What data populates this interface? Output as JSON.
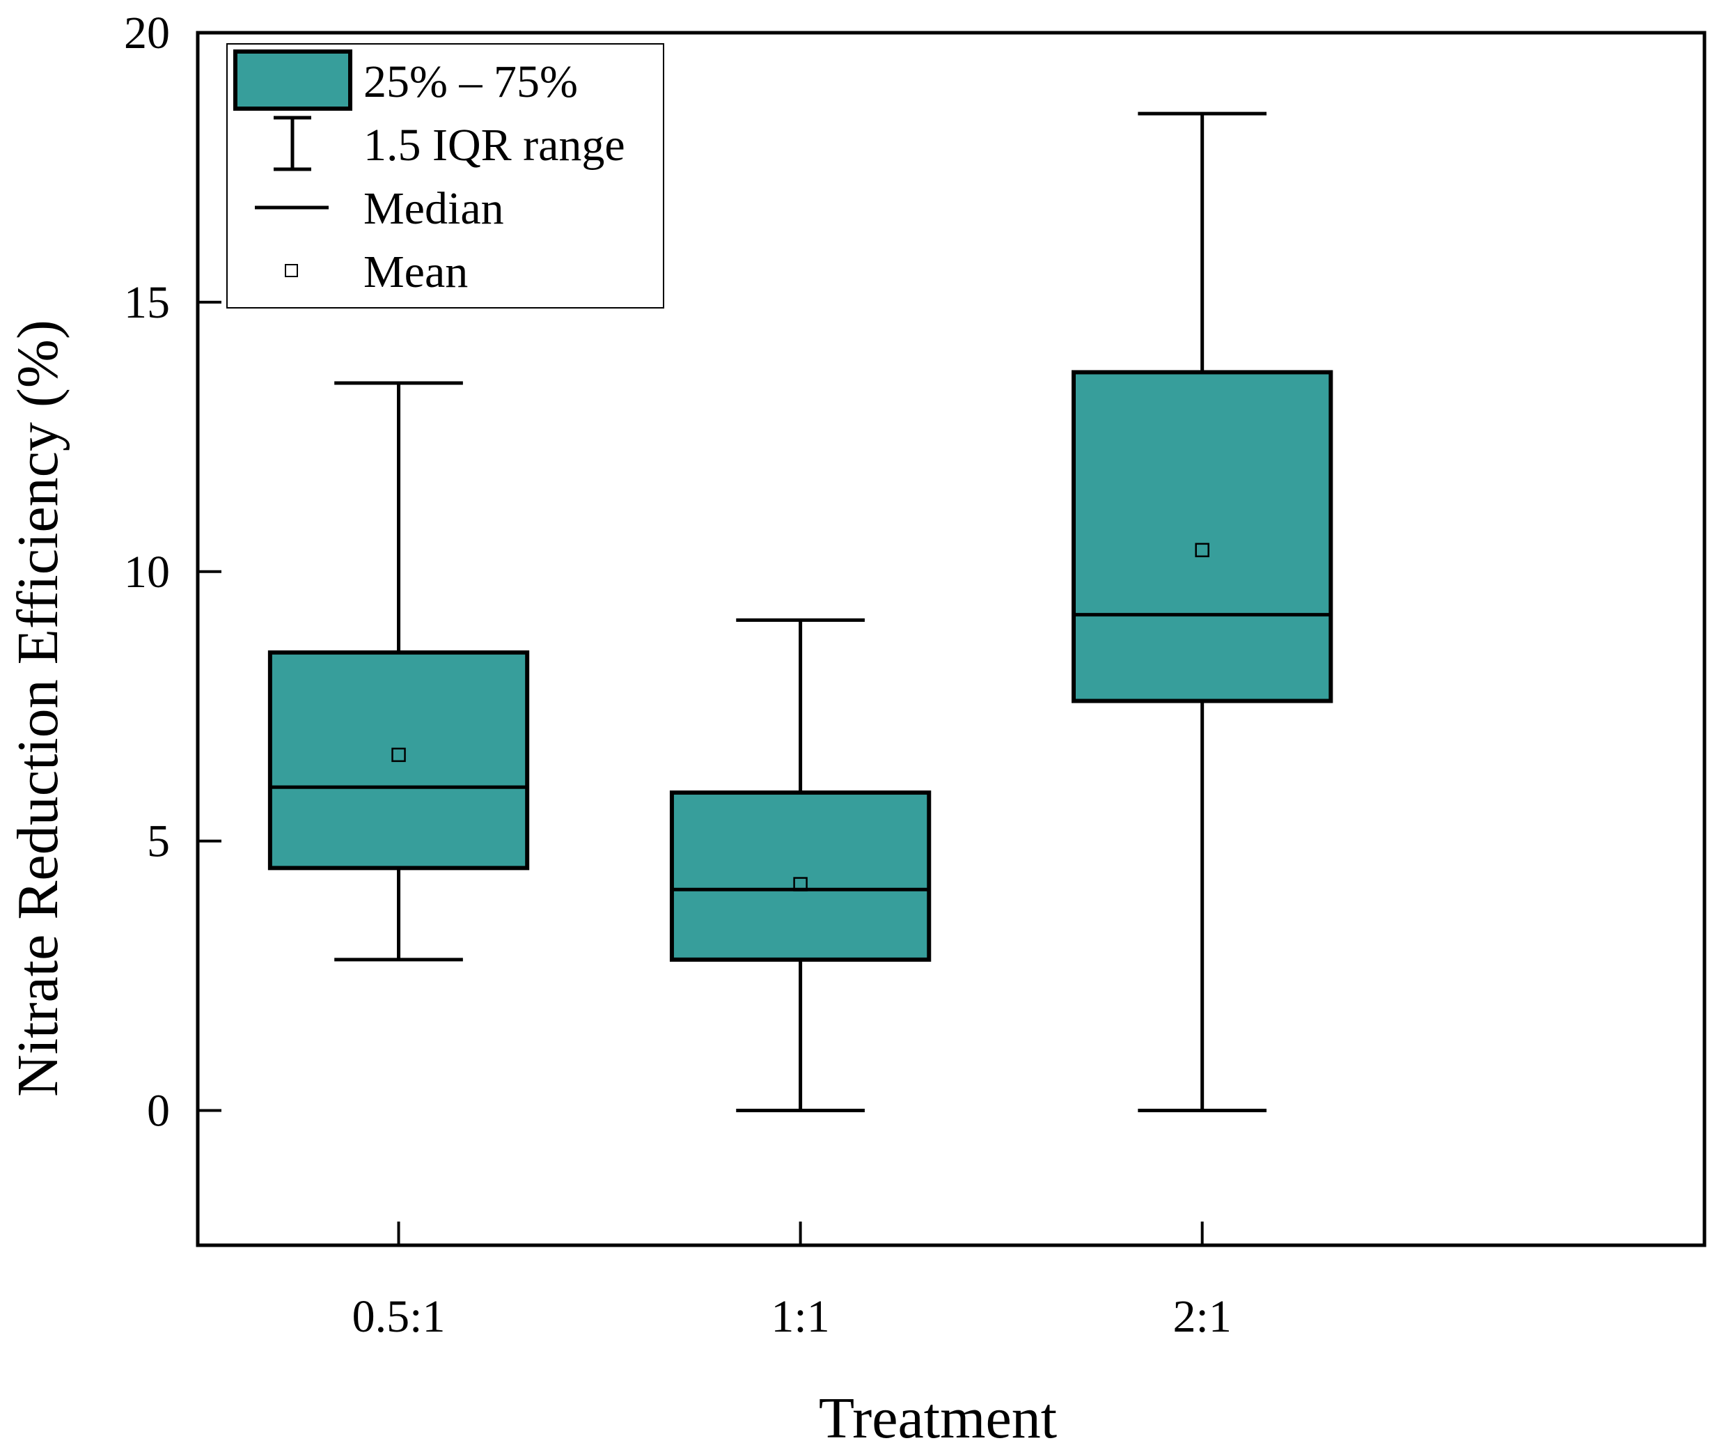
{
  "chart_data": {
    "type": "boxplot",
    "title": "",
    "xlabel": "Treatment",
    "ylabel": "Nitrate Reduction Efficiency (%)",
    "ylim": [
      -2.5,
      20
    ],
    "yticks": [
      0,
      5,
      10,
      15,
      20
    ],
    "categories": [
      "0.5:1",
      "1:1",
      "2:1"
    ],
    "boxes": [
      {
        "category": "0.5:1",
        "whisker_low": 2.8,
        "q1": 4.5,
        "median": 6.0,
        "q3": 8.5,
        "whisker_high": 13.5,
        "mean": 6.6
      },
      {
        "category": "1:1",
        "whisker_low": 0.0,
        "q1": 2.8,
        "median": 4.1,
        "q3": 5.9,
        "whisker_high": 9.1,
        "mean": 4.2
      },
      {
        "category": "2:1",
        "whisker_low": 0.0,
        "q1": 7.6,
        "median": 9.2,
        "q3": 13.7,
        "whisker_high": 18.5,
        "mean": 10.4
      }
    ],
    "legend": {
      "position": "top-left",
      "items": [
        {
          "key": "box",
          "label": "25% – 75%"
        },
        {
          "key": "whisker",
          "label": "1.5 IQR range"
        },
        {
          "key": "median",
          "label": "Median"
        },
        {
          "key": "mean",
          "label": "Mean"
        }
      ]
    },
    "colors": {
      "box_fill": "#379e9b",
      "stroke": "#000000",
      "background": "#ffffff"
    }
  }
}
